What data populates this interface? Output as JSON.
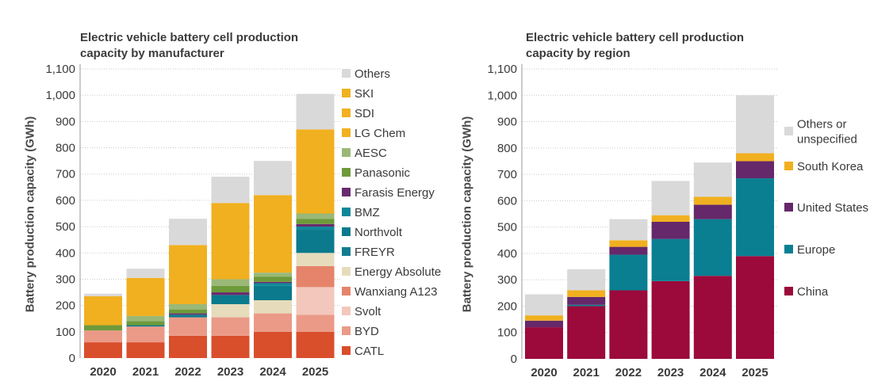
{
  "chart_data": [
    {
      "type": "bar",
      "stacked": true,
      "title": "Electric vehicle battery cell production\ncapacity by manufacturer",
      "xlabel": "",
      "ylabel": "Battery production capacity (GWh)",
      "ylim": [
        0,
        1100
      ],
      "yticks": [
        "0",
        "100",
        "200",
        "300",
        "400",
        "500",
        "600",
        "700",
        "800",
        "900",
        "1,000",
        "1,100"
      ],
      "grid": true,
      "legend_position": "right",
      "categories": [
        "2020",
        "2021",
        "2022",
        "2023",
        "2024",
        "2025"
      ],
      "series": [
        {
          "name": "CATL",
          "color": "#d94e2b",
          "values": [
            60,
            60,
            85,
            85,
            100,
            100
          ]
        },
        {
          "name": "BYD",
          "color": "#ea9a87",
          "values": [
            45,
            60,
            70,
            70,
            70,
            65
          ]
        },
        {
          "name": "Svolt",
          "color": "#f3c7bc",
          "values": [
            0,
            0,
            0,
            0,
            0,
            105
          ]
        },
        {
          "name": "Wanxiang A123",
          "color": "#e5846a",
          "values": [
            0,
            0,
            0,
            0,
            0,
            80
          ]
        },
        {
          "name": "Energy Absolute",
          "color": "#e6dcbc",
          "values": [
            0,
            0,
            0,
            50,
            50,
            50
          ]
        },
        {
          "name": "FREYR",
          "color": "#127d8e",
          "values": [
            0,
            0,
            0,
            0,
            0,
            0
          ]
        },
        {
          "name": "Northvolt",
          "color": "#0a7a8c",
          "values": [
            0,
            5,
            10,
            35,
            55,
            90
          ]
        },
        {
          "name": "BMZ",
          "color": "#0b8898",
          "values": [
            0,
            0,
            0,
            0,
            10,
            10
          ]
        },
        {
          "name": "Farasis Energy",
          "color": "#6a2a6e",
          "values": [
            0,
            0,
            5,
            10,
            5,
            10
          ]
        },
        {
          "name": "Panasonic",
          "color": "#6e9a3a",
          "values": [
            20,
            15,
            15,
            25,
            20,
            20
          ]
        },
        {
          "name": "AESC",
          "color": "#9ab878",
          "values": [
            0,
            20,
            20,
            25,
            15,
            20
          ]
        },
        {
          "name": "LG Chem",
          "color": "#f1b01f",
          "values": [
            110,
            145,
            225,
            290,
            295,
            320
          ]
        },
        {
          "name": "SDI",
          "color": "#f1b01f",
          "values": [
            0,
            0,
            0,
            0,
            0,
            0
          ]
        },
        {
          "name": "SKI",
          "color": "#f1b01f",
          "values": [
            0,
            0,
            0,
            0,
            0,
            0
          ]
        },
        {
          "name": "Others",
          "color": "#d9d9d9",
          "values": [
            10,
            35,
            100,
            100,
            130,
            135
          ]
        }
      ]
    },
    {
      "type": "bar",
      "stacked": true,
      "title": "Electric vehicle battery cell production\ncapacity by region",
      "xlabel": "",
      "ylabel": "Battery production capacity (GWh)",
      "ylim": [
        0,
        1100
      ],
      "yticks": [
        "0",
        "100",
        "200",
        "300",
        "400",
        "500",
        "600",
        "700",
        "800",
        "900",
        "1,000",
        "1,100"
      ],
      "grid": true,
      "legend_position": "right",
      "categories": [
        "2020",
        "2021",
        "2022",
        "2023",
        "2024",
        "2025"
      ],
      "series": [
        {
          "name": "China",
          "color": "#9b0a3b",
          "values": [
            120,
            200,
            260,
            295,
            315,
            390
          ]
        },
        {
          "name": "Europe",
          "color": "#0a7f92",
          "values": [
            0,
            5,
            135,
            160,
            215,
            295
          ]
        },
        {
          "name": "United States",
          "color": "#65286a",
          "values": [
            25,
            30,
            30,
            65,
            55,
            65
          ]
        },
        {
          "name": "South Korea",
          "color": "#f1b01f",
          "values": [
            20,
            25,
            25,
            25,
            30,
            30
          ]
        },
        {
          "name": "Others or\nunspecified",
          "color": "#d9d9d9",
          "values": [
            80,
            80,
            80,
            130,
            130,
            220
          ]
        }
      ]
    }
  ]
}
